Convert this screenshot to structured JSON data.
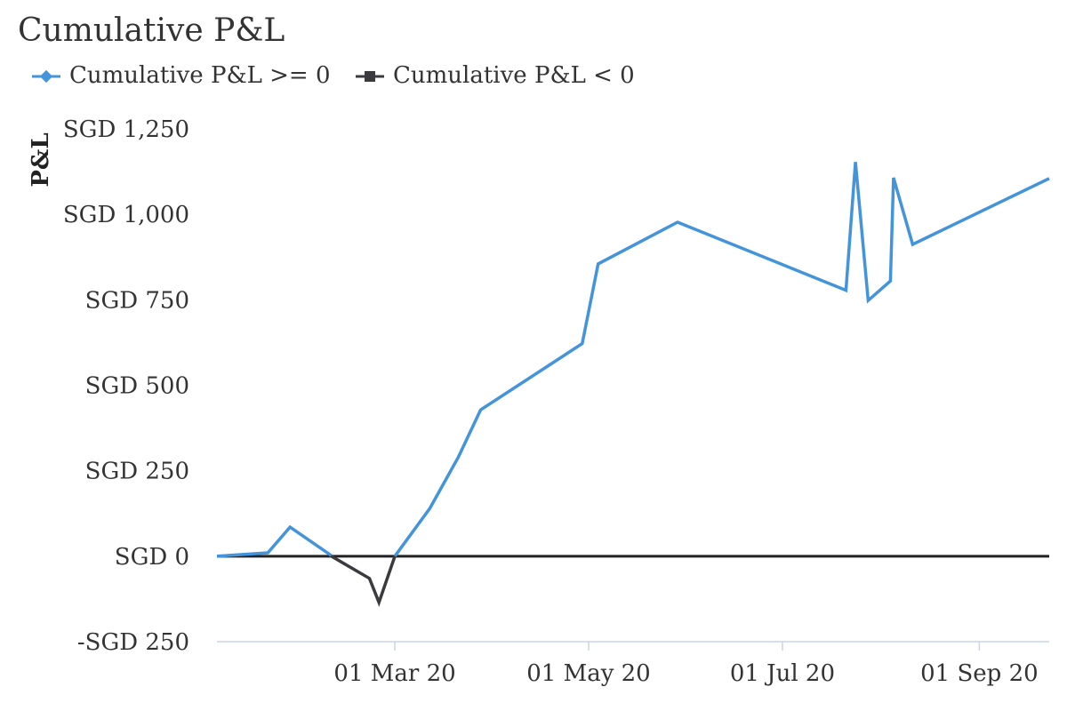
{
  "chart_data": {
    "type": "line",
    "title": "Cumulative P&L",
    "ylabel": "P&L",
    "xlabel": "",
    "ylim": [
      -250,
      1250
    ],
    "yticks": [
      -250,
      0,
      250,
      500,
      750,
      1000,
      1250
    ],
    "ytick_labels": [
      "-SGD 250",
      "SGD 0",
      "SGD 250",
      "SGD 500",
      "SGD 750",
      "SGD 1,000",
      "SGD 1,250"
    ],
    "xlim": [
      "2020-01-05",
      "2020-09-23"
    ],
    "xticks": [
      "2020-03-01",
      "2020-05-01",
      "2020-07-01",
      "2020-09-01"
    ],
    "xtick_labels": [
      "01 Mar 20",
      "01 May 20",
      "01 Jul 20",
      "01 Sep 20"
    ],
    "legend_position": "top-left",
    "series": [
      {
        "name": "Cumulative P&L >= 0",
        "color": "#4394db",
        "marker": "diamond",
        "points": [
          [
            "2020-01-05",
            0
          ],
          [
            "2020-01-21",
            10
          ],
          [
            "2020-01-28",
            85
          ],
          [
            "2020-02-10",
            2
          ],
          [
            "2020-02-15",
            null
          ],
          [
            "2020-02-27",
            null
          ],
          [
            "2020-03-01",
            0
          ],
          [
            "2020-03-12",
            140
          ],
          [
            "2020-03-21",
            290
          ],
          [
            "2020-03-28",
            428
          ],
          [
            "2020-04-29",
            622
          ],
          [
            "2020-05-04",
            855
          ],
          [
            "2020-05-29",
            977
          ],
          [
            "2020-07-21",
            778
          ],
          [
            "2020-07-24",
            1153
          ],
          [
            "2020-07-28",
            748
          ],
          [
            "2020-08-04",
            805
          ],
          [
            "2020-08-05",
            1107
          ],
          [
            "2020-08-11",
            912
          ],
          [
            "2020-09-23",
            1105
          ]
        ]
      },
      {
        "name": "Cumulative P&L < 0",
        "color": "#3a3a3f",
        "marker": "square",
        "points": [
          [
            "2020-02-10",
            0
          ],
          [
            "2020-02-22",
            -65
          ],
          [
            "2020-02-25",
            -135
          ],
          [
            "2020-03-01",
            0
          ]
        ]
      }
    ],
    "reference_line": {
      "y": 0,
      "color": "#222222"
    },
    "grid": false
  }
}
